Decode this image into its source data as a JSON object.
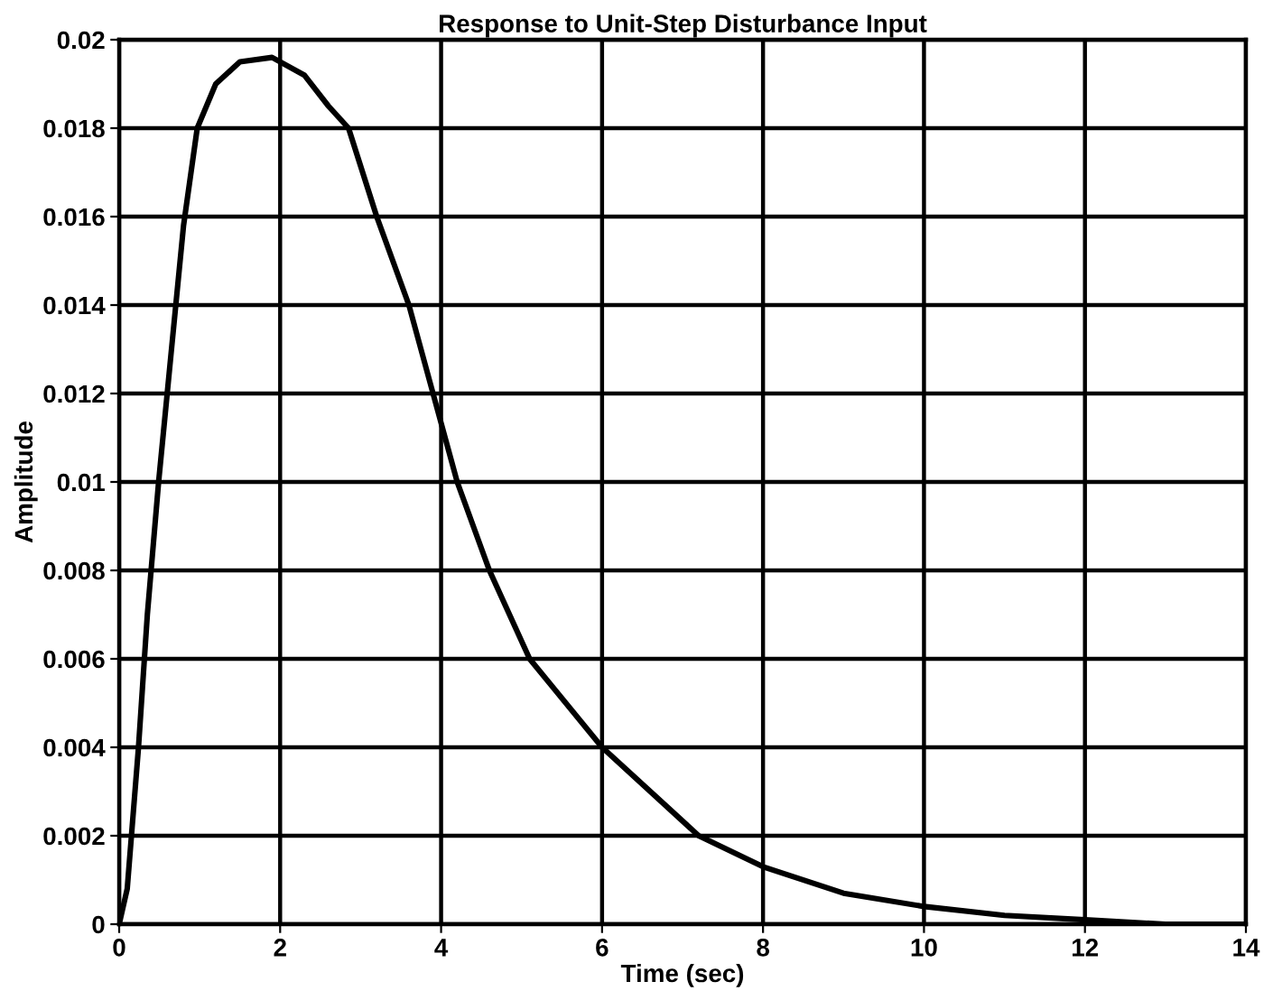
{
  "chart_data": {
    "type": "line",
    "title": "Response to Unit-Step Disturbance Input",
    "xlabel": "Time (sec)",
    "ylabel": "Amplitude",
    "x": [
      0,
      0.1,
      0.24,
      0.35,
      0.49,
      0.65,
      0.8,
      0.97,
      1.2,
      1.5,
      1.9,
      2.3,
      2.6,
      2.85,
      3.2,
      3.6,
      3.9,
      4.2,
      4.6,
      5.1,
      6,
      7.2,
      8,
      9,
      10,
      11,
      12,
      13,
      14
    ],
    "series": [
      {
        "color": "#000000",
        "values": [
          0,
          0.0008,
          0.004,
          0.007,
          0.01,
          0.013,
          0.0158,
          0.018,
          0.019,
          0.0195,
          0.0196,
          0.0192,
          0.0185,
          0.018,
          0.016,
          0.014,
          0.012,
          0.01,
          0.008,
          0.006,
          0.004,
          0.002,
          0.0013,
          0.0007,
          0.0004,
          0.0002,
          0.0001,
          0,
          0
        ]
      }
    ],
    "xlim": [
      0,
      14
    ],
    "xticks": [
      0,
      2,
      4,
      6,
      8,
      10,
      12,
      14
    ],
    "ylim": [
      0,
      0.02
    ],
    "yticks": [
      0,
      0.002,
      0.004,
      0.006,
      0.008,
      0.01,
      0.012,
      0.014,
      0.016,
      0.018,
      0.02
    ],
    "grid": true,
    "line_style": "solid"
  }
}
